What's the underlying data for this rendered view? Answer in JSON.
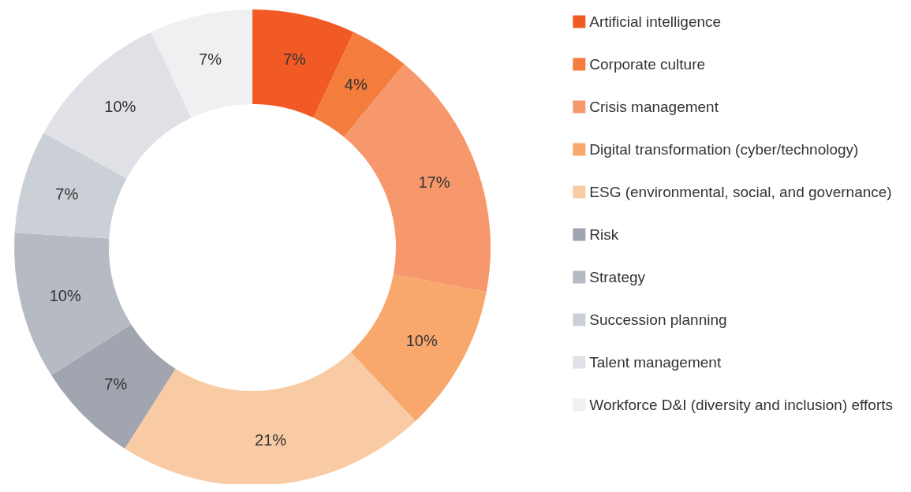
{
  "chart_data": {
    "type": "donut",
    "categories": [
      "Artificial intelligence",
      "Corporate culture",
      "Crisis management",
      "Digital transformation (cyber/technology)",
      "ESG (environmental, social, and governance)",
      "Risk",
      "Strategy",
      "Succession planning",
      "Talent management",
      "Workforce D&I (diversity and inclusion) efforts"
    ],
    "values": [
      7,
      4,
      17,
      10,
      21,
      7,
      10,
      7,
      10,
      7
    ],
    "colors": [
      "#f15a24",
      "#f47c3c",
      "#f6986c",
      "#f8a86c",
      "#f9cba5",
      "#a0a5b0",
      "#b5bac3",
      "#cbcfd6",
      "#dfe1e6",
      "#eef0f2"
    ],
    "value_labels": [
      "7%",
      "4%",
      "17%",
      "10%",
      "21%",
      "7%",
      "10%",
      "7%",
      "10%",
      "7%"
    ],
    "legend": "right"
  }
}
